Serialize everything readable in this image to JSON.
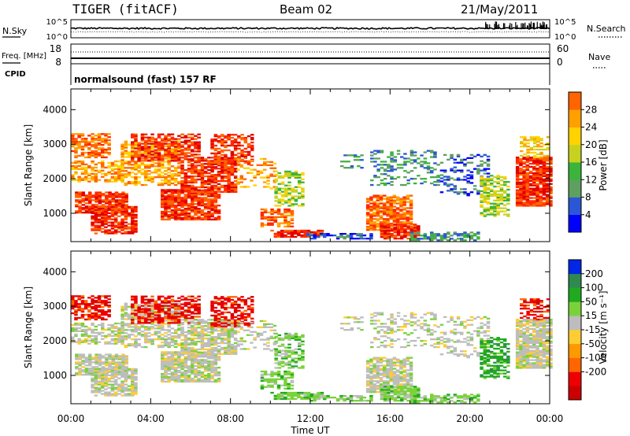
{
  "header": {
    "radar": "TIGER (fitACF)",
    "beam": "Beam 02",
    "date": "21/May/2011"
  },
  "colors": {
    "power": [
      "#0000ff",
      "#2b57d6",
      "#5f9f5f",
      "#3cb43c",
      "#c8d21e",
      "#ffd200",
      "#ffa000",
      "#ff6400",
      "#ff2800",
      "#e10000"
    ],
    "velocity": [
      "#0026e6",
      "#1f4fbf",
      "#2e8a4e",
      "#1faa1f",
      "#7ad23a",
      "#bdbdbd",
      "#ffcc33",
      "#ff9900",
      "#ff6600",
      "#ee0000",
      "#cc0000"
    ]
  },
  "chart_data": [
    {
      "type": "line",
      "name": "noise-panel",
      "ylabel_left": "N.Sky",
      "ylabel_right": "N.Search",
      "left_ticks": [
        "10^5",
        "10^0"
      ],
      "right_ticks": [
        "10^5",
        "10^0"
      ]
    },
    {
      "type": "line",
      "name": "freq-panel",
      "ylabel_left": "Freq. [MHz]",
      "ylabel_right": "Nave",
      "left_ticks": [
        "18",
        "8"
      ],
      "right_ticks": [
        "60",
        "0"
      ]
    },
    {
      "type": "table",
      "name": "cpid-panel",
      "label": "CPID",
      "value": "normalsound (fast) 157 RF"
    },
    {
      "type": "heatmap",
      "name": "power-panel",
      "ylabel": "Slant Range [km]",
      "y_ticks": [
        1000,
        2000,
        3000,
        4000
      ],
      "ylim": [
        180,
        4600
      ],
      "colorbar_label": "Power [dB]",
      "colorbar_ticks": [
        4,
        8,
        12,
        16,
        20,
        24,
        28
      ],
      "colorbar_range": [
        0,
        32
      ]
    },
    {
      "type": "heatmap",
      "name": "velocity-panel",
      "ylabel": "Slant Range [km]",
      "y_ticks": [
        1000,
        2000,
        3000,
        4000
      ],
      "ylim": [
        180,
        4600
      ],
      "colorbar_label": "Velocity [m s⁻¹]",
      "colorbar_ticks": [
        "200",
        "100",
        "50",
        "15",
        "-15",
        "-50",
        "-100",
        "-200"
      ]
    }
  ],
  "x_axis": {
    "label": "Time UT",
    "ticks": [
      "00:00",
      "04:00",
      "08:00",
      "12:00",
      "16:00",
      "20:00",
      "00:00"
    ]
  }
}
